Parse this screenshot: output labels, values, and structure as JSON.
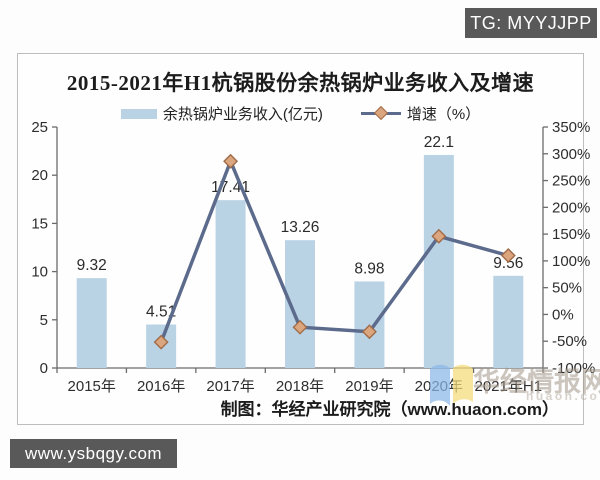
{
  "badges": {
    "tg": "TG: MYYJJPP",
    "site": "www.ysbqgy.com"
  },
  "chart_data": {
    "type": "bar",
    "title": "2015-2021年H1杭锅股份余热锅炉业务收入及增速",
    "categories": [
      "2015年",
      "2016年",
      "2017年",
      "2018年",
      "2019年",
      "2020年",
      "2021年H1"
    ],
    "series": [
      {
        "name": "余热锅炉业务收入(亿元)",
        "type": "bar",
        "axis": "left",
        "values": [
          9.32,
          4.51,
          17.41,
          13.26,
          8.98,
          22.1,
          9.56
        ],
        "labels": [
          "9.32",
          "4.51",
          "17.41",
          "13.26",
          "8.98",
          "22.1",
          "9.56"
        ],
        "color": "#b9d3e5"
      },
      {
        "name": "增速（%）",
        "type": "line",
        "axis": "right",
        "values": [
          null,
          -51.6,
          286,
          -23.8,
          -32.3,
          146,
          110
        ],
        "color": "#5c6b8c",
        "marker": "diamond",
        "marker_fill": "#dba57d",
        "marker_stroke": "#a06c49"
      }
    ],
    "left_axis": {
      "min": 0,
      "max": 25,
      "ticks": [
        "25",
        "20",
        "15",
        "10",
        "5",
        "0"
      ]
    },
    "right_axis": {
      "min": -100,
      "max": 350,
      "ticks": [
        "350%",
        "300%",
        "250%",
        "200%",
        "150%",
        "100%",
        "50%",
        "0%",
        "-50%",
        "-100%"
      ]
    },
    "grid": false,
    "legend_position": "top"
  },
  "footer": {
    "credit": "制图：华经产业研究院（www.huaon.com）"
  },
  "watermark": {
    "text": "华经情报网",
    "subtext": "huaon.com"
  }
}
